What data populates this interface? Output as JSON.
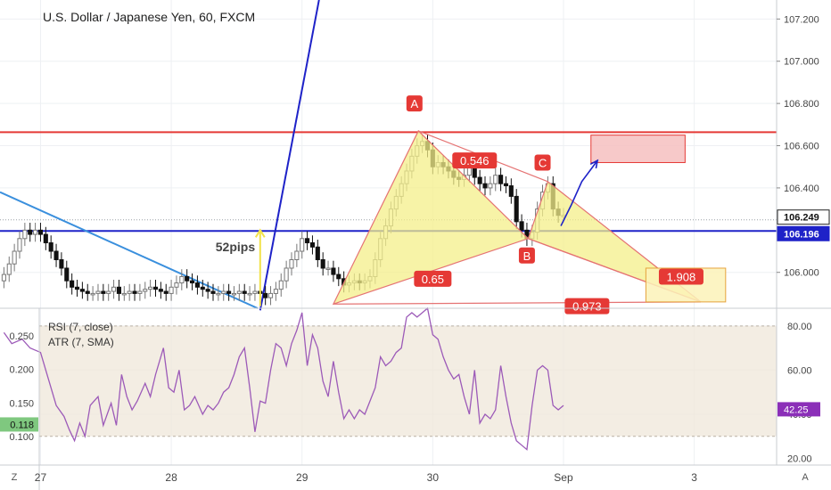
{
  "chart_title": "U.S. Dollar / Japanese Yen, 60, FXCM",
  "colors": {
    "grid": "#eef0f3",
    "up": "#777777",
    "down": "#111111",
    "resistance": "#e53935",
    "support": "#1e22c8",
    "trend_blue": "#3a8fdd",
    "pattern_fill": "#f4ef8a",
    "pattern_edge": "#e57373",
    "label_red": "#e53935",
    "rsi_line": "#9c5ab8",
    "rsi_band": "#efe7da",
    "atr_badge": "#7fc87f",
    "rsi_badge": "#8b2fb8",
    "target_fill": "#f6c0c0",
    "zone_fill": "#fbf2b8",
    "arrow_yellow": "#f2e24a"
  },
  "chart_data": [
    {
      "type": "candlestick",
      "title": "U.S. Dollar / Japanese Yen, 60, FXCM",
      "price_axis": {
        "ticks": [
          107.2,
          107.0,
          106.8,
          106.6,
          106.4,
          106.0
        ],
        "tick_labels": [
          "107.200",
          "107.000",
          "106.800",
          "106.600",
          "106.400",
          "106.000"
        ],
        "ylim": [
          105.83,
          107.29
        ]
      },
      "time_axis": {
        "ticks": [
          0.0,
          1.0,
          2.0,
          3.0,
          4.0,
          5.0
        ],
        "tick_labels": [
          "27",
          "28",
          "29",
          "30",
          "Sep",
          "3"
        ],
        "xlim": [
          -0.31,
          5.63
        ]
      },
      "price_badges": [
        {
          "value": 106.249,
          "label": "106.249"
        },
        {
          "value": 106.196,
          "label": "106.196"
        }
      ],
      "candles_close": [
        [
          -0.28,
          105.99
        ],
        [
          -0.24,
          106.04
        ],
        [
          -0.2,
          106.1
        ],
        [
          -0.16,
          106.16
        ],
        [
          -0.12,
          106.2
        ],
        [
          -0.08,
          106.18
        ],
        [
          -0.04,
          106.2
        ],
        [
          0.0,
          106.18
        ],
        [
          0.04,
          106.14
        ],
        [
          0.08,
          106.1
        ],
        [
          0.12,
          106.06
        ],
        [
          0.16,
          106.02
        ],
        [
          0.2,
          105.96
        ],
        [
          0.24,
          105.93
        ],
        [
          0.28,
          105.92
        ],
        [
          0.32,
          105.91
        ],
        [
          0.36,
          105.9
        ],
        [
          0.4,
          105.9
        ],
        [
          0.44,
          105.91
        ],
        [
          0.48,
          105.9
        ],
        [
          0.52,
          105.91
        ],
        [
          0.56,
          105.93
        ],
        [
          0.6,
          105.9
        ],
        [
          0.64,
          105.9
        ],
        [
          0.68,
          105.91
        ],
        [
          0.72,
          105.9
        ],
        [
          0.76,
          105.91
        ],
        [
          0.8,
          105.92
        ],
        [
          0.84,
          105.93
        ],
        [
          0.88,
          105.92
        ],
        [
          0.92,
          105.91
        ],
        [
          0.96,
          105.9
        ],
        [
          1.0,
          105.93
        ],
        [
          1.04,
          105.95
        ],
        [
          1.08,
          105.98
        ],
        [
          1.12,
          105.96
        ],
        [
          1.16,
          105.95
        ],
        [
          1.2,
          105.93
        ],
        [
          1.24,
          105.92
        ],
        [
          1.28,
          105.91
        ],
        [
          1.32,
          105.9
        ],
        [
          1.36,
          105.9
        ],
        [
          1.4,
          105.91
        ],
        [
          1.44,
          105.9
        ],
        [
          1.48,
          105.9
        ],
        [
          1.52,
          105.91
        ],
        [
          1.56,
          105.9
        ],
        [
          1.6,
          105.9
        ],
        [
          1.64,
          105.91
        ],
        [
          1.68,
          105.9
        ],
        [
          1.72,
          105.88
        ],
        [
          1.76,
          105.9
        ],
        [
          1.8,
          105.92
        ],
        [
          1.84,
          105.96
        ],
        [
          1.88,
          106.02
        ],
        [
          1.92,
          106.06
        ],
        [
          1.96,
          106.1
        ],
        [
          2.0,
          106.16
        ],
        [
          2.04,
          106.14
        ],
        [
          2.08,
          106.12
        ],
        [
          2.12,
          106.06
        ],
        [
          2.16,
          106.02
        ],
        [
          2.2,
          106.02
        ],
        [
          2.24,
          105.99
        ],
        [
          2.28,
          105.97
        ],
        [
          2.32,
          105.94
        ],
        [
          2.36,
          105.95
        ],
        [
          2.4,
          105.96
        ],
        [
          2.44,
          105.95
        ],
        [
          2.48,
          105.96
        ],
        [
          2.52,
          105.98
        ],
        [
          2.56,
          106.06
        ],
        [
          2.6,
          106.16
        ],
        [
          2.64,
          106.22
        ],
        [
          2.68,
          106.3
        ],
        [
          2.72,
          106.36
        ],
        [
          2.76,
          106.42
        ],
        [
          2.8,
          106.48
        ],
        [
          2.84,
          106.55
        ],
        [
          2.88,
          106.6
        ],
        [
          2.92,
          106.62
        ],
        [
          2.96,
          106.58
        ],
        [
          3.0,
          106.5
        ],
        [
          3.04,
          106.52
        ],
        [
          3.08,
          106.5
        ],
        [
          3.12,
          106.48
        ],
        [
          3.16,
          106.45
        ],
        [
          3.2,
          106.44
        ],
        [
          3.24,
          106.46
        ],
        [
          3.28,
          106.52
        ],
        [
          3.32,
          106.45
        ],
        [
          3.36,
          106.42
        ],
        [
          3.4,
          106.4
        ],
        [
          3.44,
          106.42
        ],
        [
          3.48,
          106.46
        ],
        [
          3.52,
          106.42
        ],
        [
          3.56,
          106.41
        ],
        [
          3.6,
          106.36
        ],
        [
          3.64,
          106.24
        ],
        [
          3.68,
          106.2
        ],
        [
          3.72,
          106.16
        ],
        [
          3.76,
          106.19
        ],
        [
          3.8,
          106.3
        ],
        [
          3.84,
          106.38
        ],
        [
          3.88,
          106.42
        ],
        [
          3.92,
          106.3
        ],
        [
          3.96,
          106.27
        ],
        [
          4.0,
          106.27
        ]
      ],
      "horizontal_levels": [
        {
          "value": 106.664,
          "kind": "resistance"
        },
        {
          "value": 106.196,
          "kind": "support"
        }
      ],
      "trendlines": [
        {
          "from": [
            -0.31,
            106.38
          ],
          "to": [
            1.66,
            105.83
          ],
          "kind": "trend_blue"
        },
        {
          "from": [
            1.68,
            105.82
          ],
          "to": [
            2.13,
            107.29
          ],
          "kind": "support"
        }
      ],
      "pattern_points": [
        {
          "name": "X",
          "x": 2.24,
          "y": 105.85
        },
        {
          "name": "A",
          "x": 2.89,
          "y": 106.67
        },
        {
          "name": "B",
          "x": 3.73,
          "y": 106.16
        },
        {
          "name": "C",
          "x": 3.88,
          "y": 106.43
        },
        {
          "name": "D",
          "x": 5.05,
          "y": 105.86
        }
      ],
      "pattern_labels": [
        {
          "text": "A",
          "x": 2.86,
          "y": 106.8,
          "kind": "vertex"
        },
        {
          "text": "C",
          "x": 3.84,
          "y": 106.52,
          "kind": "vertex"
        },
        {
          "text": "B",
          "x": 3.72,
          "y": 106.08,
          "kind": "vertex"
        },
        {
          "text": "0.546",
          "x": 3.32,
          "y": 106.53,
          "kind": "ratio"
        },
        {
          "text": "0.65",
          "x": 3.0,
          "y": 105.97,
          "kind": "ratio"
        },
        {
          "text": "1.908",
          "x": 4.9,
          "y": 105.98,
          "kind": "ratio"
        },
        {
          "text": "0.973",
          "x": 4.18,
          "y": 105.84,
          "kind": "ratio"
        }
      ],
      "projection_arrow": {
        "points": [
          [
            3.98,
            106.22
          ],
          [
            4.06,
            106.32
          ],
          [
            4.14,
            106.43
          ],
          [
            4.26,
            106.53
          ]
        ]
      },
      "target_box": {
        "x0": 4.21,
        "x1": 4.93,
        "y0": 106.52,
        "y1": 106.65
      },
      "reversal_zone": {
        "x0": 4.63,
        "x1": 5.24,
        "y0": 105.86,
        "y1": 106.02
      },
      "pips_marker": {
        "x": 1.68,
        "y0": 105.84,
        "y1": 106.2,
        "text": "52pips",
        "label_x": 1.49,
        "label_y": 106.1
      }
    },
    {
      "type": "line",
      "legend": [
        "RSI (7, close)",
        "ATR (7, SMA)"
      ],
      "rsi_axis": {
        "ticks": [
          80,
          60,
          40,
          20
        ],
        "tick_labels": [
          "80.00",
          "60.00",
          "40.00",
          "20.00"
        ],
        "ylim": [
          17,
          88
        ]
      },
      "atr_axis": {
        "ticks": [
          0.25,
          0.2,
          0.15,
          0.1
        ],
        "tick_labels": [
          "0.250",
          "0.200",
          "0.150",
          "0.100"
        ]
      },
      "badges": {
        "atr": "0.118",
        "rsi": "42.25"
      },
      "rsi_band": [
        30,
        80
      ],
      "rsi_series": [
        [
          -0.28,
          77
        ],
        [
          -0.22,
          72
        ],
        [
          -0.14,
          74
        ],
        [
          -0.08,
          70
        ],
        [
          0.0,
          68
        ],
        [
          0.06,
          56
        ],
        [
          0.12,
          44
        ],
        [
          0.18,
          39
        ],
        [
          0.22,
          33
        ],
        [
          0.26,
          28
        ],
        [
          0.3,
          36
        ],
        [
          0.34,
          30
        ],
        [
          0.38,
          44
        ],
        [
          0.44,
          48
        ],
        [
          0.48,
          35
        ],
        [
          0.54,
          45
        ],
        [
          0.58,
          35
        ],
        [
          0.62,
          58
        ],
        [
          0.66,
          48
        ],
        [
          0.7,
          42
        ],
        [
          0.74,
          46
        ],
        [
          0.8,
          54
        ],
        [
          0.84,
          48
        ],
        [
          0.88,
          58
        ],
        [
          0.94,
          70
        ],
        [
          0.98,
          52
        ],
        [
          1.02,
          50
        ],
        [
          1.06,
          60
        ],
        [
          1.1,
          42
        ],
        [
          1.14,
          44
        ],
        [
          1.18,
          48
        ],
        [
          1.24,
          40
        ],
        [
          1.28,
          44
        ],
        [
          1.32,
          42
        ],
        [
          1.36,
          45
        ],
        [
          1.4,
          50
        ],
        [
          1.44,
          52
        ],
        [
          1.48,
          58
        ],
        [
          1.52,
          66
        ],
        [
          1.56,
          70
        ],
        [
          1.6,
          52
        ],
        [
          1.64,
          32
        ],
        [
          1.68,
          46
        ],
        [
          1.72,
          45
        ],
        [
          1.76,
          60
        ],
        [
          1.8,
          72
        ],
        [
          1.84,
          70
        ],
        [
          1.88,
          62
        ],
        [
          1.92,
          72
        ],
        [
          1.96,
          78
        ],
        [
          2.0,
          86
        ],
        [
          2.04,
          62
        ],
        [
          2.08,
          76
        ],
        [
          2.12,
          70
        ],
        [
          2.16,
          55
        ],
        [
          2.2,
          48
        ],
        [
          2.24,
          64
        ],
        [
          2.28,
          50
        ],
        [
          2.32,
          38
        ],
        [
          2.36,
          42
        ],
        [
          2.4,
          38
        ],
        [
          2.44,
          42
        ],
        [
          2.48,
          40
        ],
        [
          2.52,
          46
        ],
        [
          2.56,
          52
        ],
        [
          2.6,
          66
        ],
        [
          2.64,
          62
        ],
        [
          2.68,
          64
        ],
        [
          2.72,
          68
        ],
        [
          2.76,
          70
        ],
        [
          2.8,
          84
        ],
        [
          2.84,
          86
        ],
        [
          2.88,
          84
        ],
        [
          2.92,
          86
        ],
        [
          2.96,
          88
        ],
        [
          3.0,
          76
        ],
        [
          3.04,
          74
        ],
        [
          3.08,
          66
        ],
        [
          3.12,
          60
        ],
        [
          3.16,
          56
        ],
        [
          3.2,
          58
        ],
        [
          3.24,
          48
        ],
        [
          3.28,
          40
        ],
        [
          3.32,
          60
        ],
        [
          3.36,
          36
        ],
        [
          3.4,
          40
        ],
        [
          3.44,
          38
        ],
        [
          3.48,
          42
        ],
        [
          3.52,
          62
        ],
        [
          3.56,
          48
        ],
        [
          3.6,
          36
        ],
        [
          3.64,
          28
        ],
        [
          3.68,
          26
        ],
        [
          3.72,
          24
        ],
        [
          3.76,
          44
        ],
        [
          3.8,
          60
        ],
        [
          3.84,
          62
        ],
        [
          3.88,
          60
        ],
        [
          3.92,
          44
        ],
        [
          3.96,
          42
        ],
        [
          4.0,
          44
        ]
      ]
    }
  ],
  "axis_corner": {
    "left_label": "Z",
    "right_label": "A"
  }
}
